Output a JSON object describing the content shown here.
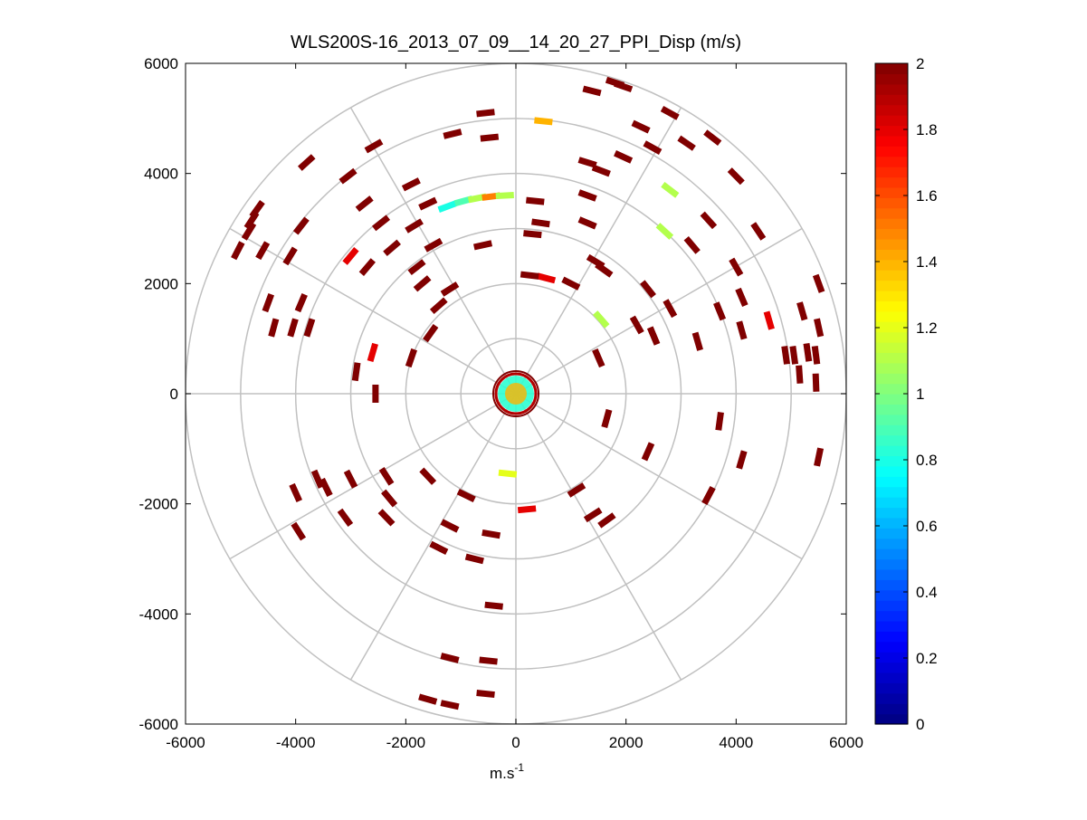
{
  "chart_data": {
    "type": "polar-ppi-scatter",
    "title": "WLS200S-16_2013_07_09__14_20_27_PPI_Disp (m/s)",
    "xlabel_base": "m.s",
    "xlabel_exp": "-1",
    "ylabel": "",
    "xlim": [
      -6000,
      6000
    ],
    "ylim": [
      -6000,
      6000
    ],
    "x_ticks": [
      "-6000",
      "-4000",
      "-2000",
      "0",
      "2000",
      "4000",
      "6000"
    ],
    "y_ticks": [
      "-6000",
      "-4000",
      "-2000",
      "0",
      "2000",
      "4000",
      "6000"
    ],
    "polar_grid": {
      "ring_radii": [
        1000,
        2000,
        3000,
        4000,
        5000,
        6000
      ],
      "spoke_angles_deg": [
        0,
        30,
        60,
        90,
        120,
        150,
        180,
        210,
        240,
        270,
        300,
        330
      ]
    },
    "colorbar": {
      "colormap": "jet",
      "range": [
        0,
        2
      ],
      "ticks": [
        "0",
        "0.2",
        "0.4",
        "0.6",
        "0.8",
        "1",
        "1.2",
        "1.4",
        "1.6",
        "1.8",
        "2"
      ]
    },
    "data_points": [
      {
        "x": 1800,
        "y": 5650,
        "v": 2
      },
      {
        "x": 1950,
        "y": 5580,
        "v": 2
      },
      {
        "x": 1380,
        "y": 5500,
        "v": 2
      },
      {
        "x": 2800,
        "y": 5100,
        "v": 2
      },
      {
        "x": 2270,
        "y": 4850,
        "v": 2
      },
      {
        "x": 3570,
        "y": 4650,
        "v": 2
      },
      {
        "x": 3100,
        "y": 4550,
        "v": 2
      },
      {
        "x": 2480,
        "y": 4470,
        "v": 2
      },
      {
        "x": -550,
        "y": 5100,
        "v": 2
      },
      {
        "x": 500,
        "y": 4950,
        "v": 1.4
      },
      {
        "x": -1150,
        "y": 4720,
        "v": 2
      },
      {
        "x": -480,
        "y": 4650,
        "v": 2
      },
      {
        "x": 1950,
        "y": 4300,
        "v": 2
      },
      {
        "x": 1300,
        "y": 4200,
        "v": 2
      },
      {
        "x": 1550,
        "y": 4050,
        "v": 2
      },
      {
        "x": 4000,
        "y": 3950,
        "v": 2
      },
      {
        "x": 2800,
        "y": 3700,
        "v": 1.1
      },
      {
        "x": -2580,
        "y": 4500,
        "v": 2
      },
      {
        "x": -3800,
        "y": 4200,
        "v": 2
      },
      {
        "x": -3050,
        "y": 3950,
        "v": 2
      },
      {
        "x": -1900,
        "y": 3800,
        "v": 2
      },
      {
        "x": -1250,
        "y": 3400,
        "v": 0.8
      },
      {
        "x": -950,
        "y": 3500,
        "v": 0.9
      },
      {
        "x": -700,
        "y": 3550,
        "v": 1.1
      },
      {
        "x": -450,
        "y": 3580,
        "v": 1.5
      },
      {
        "x": -200,
        "y": 3600,
        "v": 1.1
      },
      {
        "x": 350,
        "y": 3500,
        "v": 2
      },
      {
        "x": 1300,
        "y": 3600,
        "v": 2
      },
      {
        "x": -2750,
        "y": 3450,
        "v": 2
      },
      {
        "x": -1600,
        "y": 3450,
        "v": 2
      },
      {
        "x": -4700,
        "y": 3350,
        "v": 2
      },
      {
        "x": -4800,
        "y": 3150,
        "v": 2
      },
      {
        "x": -4850,
        "y": 2950,
        "v": 2
      },
      {
        "x": -3900,
        "y": 3050,
        "v": 2
      },
      {
        "x": -2450,
        "y": 3100,
        "v": 2
      },
      {
        "x": -1850,
        "y": 3050,
        "v": 2
      },
      {
        "x": 450,
        "y": 3100,
        "v": 2
      },
      {
        "x": 1300,
        "y": 3100,
        "v": 2
      },
      {
        "x": 3500,
        "y": 3150,
        "v": 2
      },
      {
        "x": 2700,
        "y": 2950,
        "v": 1.1
      },
      {
        "x": 4400,
        "y": 2950,
        "v": 2
      },
      {
        "x": -5050,
        "y": 2600,
        "v": 2
      },
      {
        "x": -4600,
        "y": 2600,
        "v": 2
      },
      {
        "x": -4100,
        "y": 2500,
        "v": 2
      },
      {
        "x": -3000,
        "y": 2500,
        "v": 1.8
      },
      {
        "x": -2250,
        "y": 2650,
        "v": 2
      },
      {
        "x": -1500,
        "y": 2700,
        "v": 2
      },
      {
        "x": -600,
        "y": 2700,
        "v": 2
      },
      {
        "x": 300,
        "y": 2900,
        "v": 2
      },
      {
        "x": 3200,
        "y": 2700,
        "v": 2
      },
      {
        "x": -2700,
        "y": 2300,
        "v": 2
      },
      {
        "x": -1800,
        "y": 2300,
        "v": 2
      },
      {
        "x": 1450,
        "y": 2400,
        "v": 2
      },
      {
        "x": 1600,
        "y": 2250,
        "v": 2
      },
      {
        "x": 4000,
        "y": 2300,
        "v": 2
      },
      {
        "x": 5500,
        "y": 2000,
        "v": 2
      },
      {
        "x": -4500,
        "y": 1650,
        "v": 2
      },
      {
        "x": -3900,
        "y": 1650,
        "v": 2
      },
      {
        "x": -1700,
        "y": 2000,
        "v": 2
      },
      {
        "x": -1200,
        "y": 1900,
        "v": 2
      },
      {
        "x": 2400,
        "y": 1900,
        "v": 2
      },
      {
        "x": 4100,
        "y": 1750,
        "v": 2
      },
      {
        "x": -4400,
        "y": 1200,
        "v": 2
      },
      {
        "x": -4050,
        "y": 1200,
        "v": 2
      },
      {
        "x": -3750,
        "y": 1200,
        "v": 2
      },
      {
        "x": 2800,
        "y": 1550,
        "v": 2
      },
      {
        "x": 3700,
        "y": 1500,
        "v": 2
      },
      {
        "x": 4600,
        "y": 1330,
        "v": 1.8
      },
      {
        "x": 5200,
        "y": 1500,
        "v": 2
      },
      {
        "x": 2200,
        "y": 1250,
        "v": 2
      },
      {
        "x": 2500,
        "y": 1050,
        "v": 2
      },
      {
        "x": 4100,
        "y": 1150,
        "v": 2
      },
      {
        "x": 5500,
        "y": 1200,
        "v": 2
      },
      {
        "x": -2600,
        "y": 750,
        "v": 1.8
      },
      {
        "x": 2500,
        "y": 1050,
        "v": 2
      },
      {
        "x": 3300,
        "y": 950,
        "v": 2
      },
      {
        "x": 4900,
        "y": 700,
        "v": 2
      },
      {
        "x": 5050,
        "y": 700,
        "v": 2
      },
      {
        "x": 5300,
        "y": 750,
        "v": 2
      },
      {
        "x": 5450,
        "y": 700,
        "v": 2
      },
      {
        "x": 5150,
        "y": 350,
        "v": 2
      },
      {
        "x": 5450,
        "y": 200,
        "v": 2
      },
      {
        "x": -2900,
        "y": 400,
        "v": 2
      },
      {
        "x": -2550,
        "y": 0,
        "v": 2
      },
      {
        "x": 3700,
        "y": -500,
        "v": 2
      },
      {
        "x": 2400,
        "y": -1050,
        "v": 2
      },
      {
        "x": 4100,
        "y": -1200,
        "v": 2
      },
      {
        "x": 5500,
        "y": -1150,
        "v": 2
      },
      {
        "x": -3600,
        "y": -1550,
        "v": 2
      },
      {
        "x": -3000,
        "y": -1550,
        "v": 2
      },
      {
        "x": -2350,
        "y": -1500,
        "v": 2
      },
      {
        "x": -1600,
        "y": -1500,
        "v": 2
      },
      {
        "x": -4000,
        "y": -1800,
        "v": 2
      },
      {
        "x": -3450,
        "y": -1700,
        "v": 2
      },
      {
        "x": -2300,
        "y": -1900,
        "v": 2
      },
      {
        "x": 1100,
        "y": -1750,
        "v": 2
      },
      {
        "x": 3500,
        "y": -1850,
        "v": 2
      },
      {
        "x": -3100,
        "y": -2250,
        "v": 2
      },
      {
        "x": -2350,
        "y": -2250,
        "v": 2
      },
      {
        "x": -900,
        "y": -1850,
        "v": 2
      },
      {
        "x": 1650,
        "y": -2300,
        "v": 2
      },
      {
        "x": -3950,
        "y": -2500,
        "v": 2
      },
      {
        "x": -1200,
        "y": -2400,
        "v": 2
      },
      {
        "x": -450,
        "y": -2550,
        "v": 2
      },
      {
        "x": -1400,
        "y": -2800,
        "v": 2
      },
      {
        "x": -750,
        "y": -3000,
        "v": 2
      },
      {
        "x": -400,
        "y": -3850,
        "v": 2
      },
      {
        "x": -1200,
        "y": -4800,
        "v": 2
      },
      {
        "x": -500,
        "y": -4850,
        "v": 2
      },
      {
        "x": -1600,
        "y": -5550,
        "v": 2
      },
      {
        "x": -1200,
        "y": -5650,
        "v": 2
      },
      {
        "x": -550,
        "y": -5450,
        "v": 2
      },
      {
        "x": 1400,
        "y": -2200,
        "v": 2
      },
      {
        "x": 1650,
        "y": -450,
        "v": 2
      },
      {
        "x": 1500,
        "y": 650,
        "v": 2
      },
      {
        "x": 1550,
        "y": 1350,
        "v": 1.1
      },
      {
        "x": 1000,
        "y": 2000,
        "v": 2
      },
      {
        "x": 550,
        "y": 2100,
        "v": 1.8
      },
      {
        "x": 250,
        "y": 2150,
        "v": 2
      },
      {
        "x": -1400,
        "y": 1600,
        "v": 2
      },
      {
        "x": -1550,
        "y": 1100,
        "v": 2
      },
      {
        "x": -1900,
        "y": 650,
        "v": 2
      },
      {
        "x": 200,
        "y": -2100,
        "v": 1.8
      },
      {
        "x": -150,
        "y": -1450,
        "v": 1.2
      }
    ]
  }
}
